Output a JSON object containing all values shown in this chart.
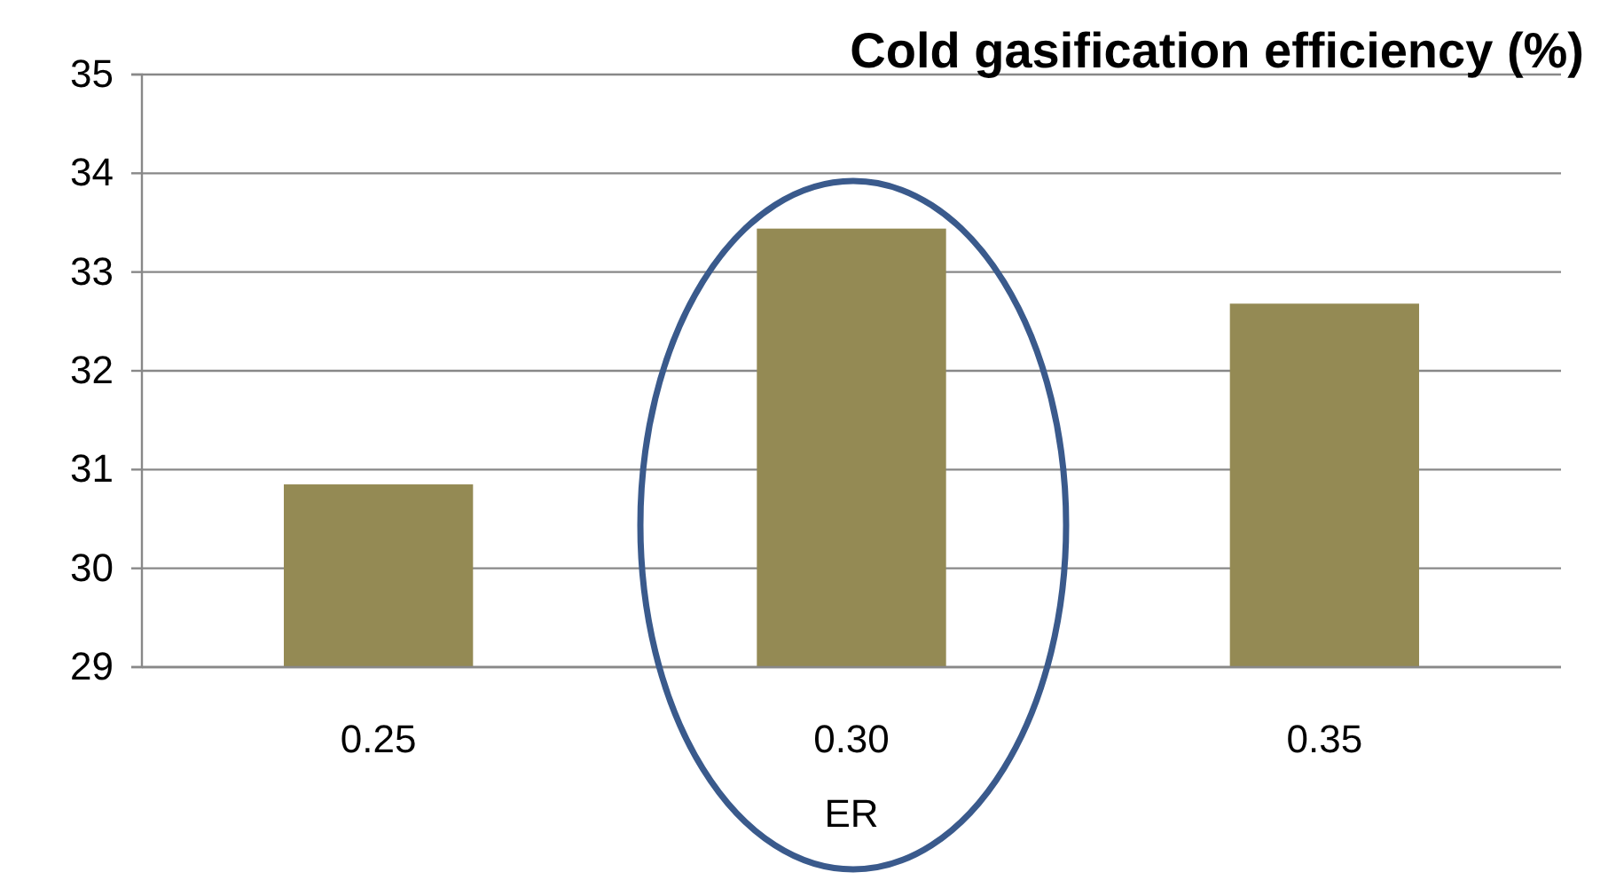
{
  "chart_data": {
    "type": "bar",
    "title": "Cold gasification efficiency (%)",
    "xlabel": "ER",
    "categories": [
      "0.25",
      "0.30",
      "0.35"
    ],
    "series": [
      {
        "color": "#948a54",
        "values": [
          30.85,
          33.44,
          32.68
        ]
      }
    ],
    "ylim": [
      29,
      35
    ],
    "yticks": [
      29,
      30,
      31,
      32,
      33,
      34,
      35
    ],
    "grid": "y"
  }
}
